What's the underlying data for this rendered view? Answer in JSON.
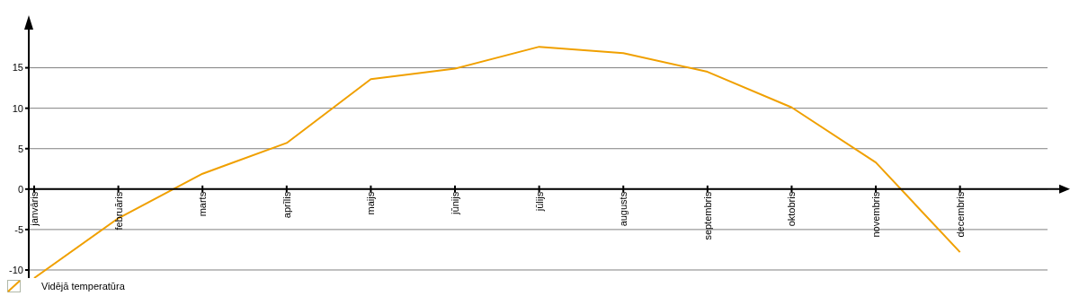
{
  "chart_data": {
    "type": "line",
    "categories": [
      "janvāris",
      "februāris",
      "marts",
      "aprīlis",
      "maijs",
      "jūnijs",
      "jūlijs",
      "augusts",
      "septembris",
      "oktobris",
      "novembris",
      "decembris"
    ],
    "series": [
      {
        "name": "Vidējā temperatūra",
        "color": "#f0a000",
        "values": [
          -11.0,
          -3.6,
          1.9,
          5.7,
          13.6,
          14.9,
          17.6,
          16.8,
          14.5,
          10.1,
          3.3,
          -7.8
        ]
      }
    ],
    "ylim": [
      -11,
      19.5
    ],
    "yticks": [
      -10,
      -5,
      0,
      5,
      10,
      15
    ],
    "grid": "y",
    "legend": "bottom left"
  }
}
